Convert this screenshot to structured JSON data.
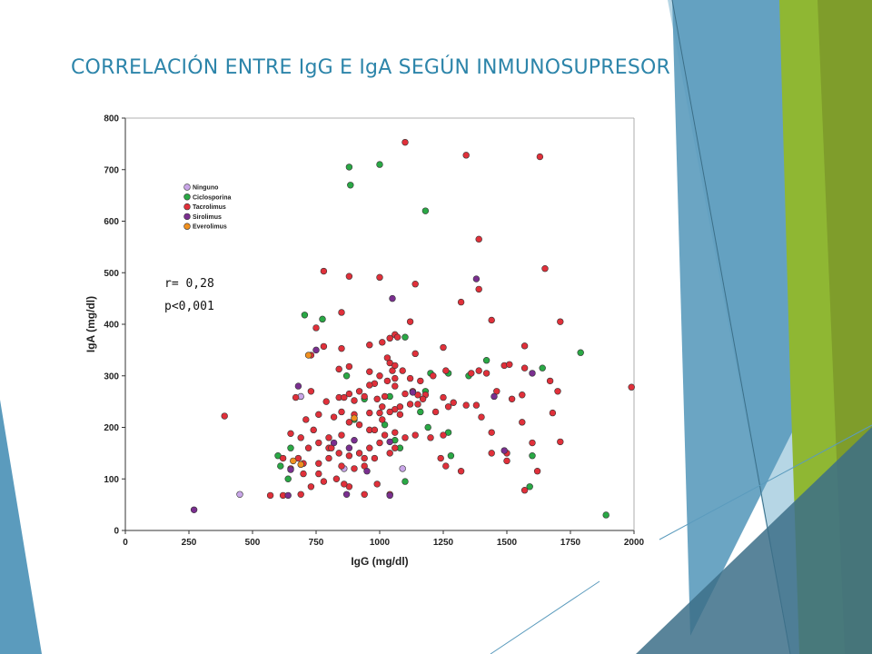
{
  "slide": {
    "title": "CORRELACIÓN ENTRE IgG E IgA SEGÚN INMUNOSUPRESOR"
  },
  "annotations": {
    "r": "r= 0,28",
    "p": "p<0,001"
  },
  "theme": {
    "title_color": "#2d85aa",
    "deco_blue": "#5b9bbd",
    "deco_light": "#a9cfe0",
    "deco_green": "#8fb733",
    "deco_olive": "#7d9a2a",
    "deco_dark": "#3c6f88"
  },
  "chart_data": {
    "type": "scatter",
    "xlabel": "IgG (mg/dl)",
    "ylabel": "IgA (mg/dl)",
    "xlim": [
      0,
      2000
    ],
    "ylim": [
      0,
      800
    ],
    "xticks": [
      0,
      250,
      500,
      750,
      1000,
      1250,
      1500,
      1750,
      2000
    ],
    "yticks": [
      0,
      100,
      200,
      300,
      400,
      500,
      600,
      700,
      800
    ],
    "grid": false,
    "legend_position": "top-left",
    "series": [
      {
        "name": "Ninguno",
        "color": "#c9a6e8",
        "points": [
          [
            450,
            70
          ],
          [
            690,
            260
          ],
          [
            860,
            120
          ],
          [
            1090,
            120
          ]
        ]
      },
      {
        "name": "Ciclosporina",
        "color": "#2aa845",
        "points": [
          [
            880,
            705
          ],
          [
            1000,
            710
          ],
          [
            885,
            670
          ],
          [
            1180,
            620
          ],
          [
            705,
            418
          ],
          [
            775,
            410
          ],
          [
            1100,
            375
          ],
          [
            1790,
            345
          ],
          [
            1420,
            330
          ],
          [
            1640,
            315
          ],
          [
            1200,
            305
          ],
          [
            1270,
            305
          ],
          [
            1350,
            300
          ],
          [
            1180,
            270
          ],
          [
            1160,
            230
          ],
          [
            1040,
            260
          ],
          [
            940,
            255
          ],
          [
            870,
            300
          ],
          [
            1020,
            205
          ],
          [
            1190,
            200
          ],
          [
            1270,
            190
          ],
          [
            1080,
            160
          ],
          [
            1280,
            145
          ],
          [
            1600,
            145
          ],
          [
            1100,
            95
          ],
          [
            650,
            160
          ],
          [
            600,
            145
          ],
          [
            610,
            125
          ],
          [
            640,
            100
          ],
          [
            1590,
            85
          ],
          [
            1890,
            30
          ],
          [
            900,
            215
          ],
          [
            1060,
            175
          ]
        ]
      },
      {
        "name": "Tacrolimus",
        "color": "#e0303a",
        "points": [
          [
            1100,
            753
          ],
          [
            1340,
            728
          ],
          [
            1630,
            725
          ],
          [
            1390,
            565
          ],
          [
            1650,
            508
          ],
          [
            780,
            503
          ],
          [
            880,
            493
          ],
          [
            1000,
            491
          ],
          [
            1140,
            478
          ],
          [
            1390,
            468
          ],
          [
            1320,
            443
          ],
          [
            1440,
            408
          ],
          [
            1710,
            405
          ],
          [
            1120,
            405
          ],
          [
            850,
            423
          ],
          [
            750,
            393
          ],
          [
            1060,
            380
          ],
          [
            1070,
            375
          ],
          [
            1040,
            373
          ],
          [
            1010,
            365
          ],
          [
            960,
            360
          ],
          [
            850,
            353
          ],
          [
            780,
            357
          ],
          [
            1570,
            358
          ],
          [
            1250,
            355
          ],
          [
            1140,
            343
          ],
          [
            730,
            340
          ],
          [
            1030,
            335
          ],
          [
            1040,
            325
          ],
          [
            1050,
            310
          ],
          [
            1060,
            320
          ],
          [
            840,
            313
          ],
          [
            880,
            318
          ],
          [
            960,
            308
          ],
          [
            1000,
            300
          ],
          [
            1030,
            290
          ],
          [
            1120,
            295
          ],
          [
            1160,
            290
          ],
          [
            1210,
            300
          ],
          [
            1260,
            310
          ],
          [
            1360,
            305
          ],
          [
            1390,
            310
          ],
          [
            1490,
            320
          ],
          [
            1510,
            322
          ],
          [
            1570,
            315
          ],
          [
            1670,
            290
          ],
          [
            1990,
            278
          ],
          [
            1420,
            305
          ],
          [
            980,
            285
          ],
          [
            1060,
            280
          ],
          [
            1100,
            265
          ],
          [
            1130,
            270
          ],
          [
            1150,
            263
          ],
          [
            1180,
            263
          ],
          [
            1250,
            258
          ],
          [
            1020,
            260
          ],
          [
            990,
            255
          ],
          [
            940,
            260
          ],
          [
            900,
            252
          ],
          [
            840,
            258
          ],
          [
            790,
            250
          ],
          [
            730,
            270
          ],
          [
            670,
            258
          ],
          [
            1010,
            240
          ],
          [
            1060,
            235
          ],
          [
            1080,
            240
          ],
          [
            1150,
            245
          ],
          [
            1270,
            240
          ],
          [
            1290,
            248
          ],
          [
            1340,
            243
          ],
          [
            1380,
            243
          ],
          [
            1460,
            270
          ],
          [
            1520,
            255
          ],
          [
            1560,
            263
          ],
          [
            1700,
            270
          ],
          [
            1680,
            228
          ],
          [
            1000,
            228
          ],
          [
            960,
            228
          ],
          [
            900,
            225
          ],
          [
            850,
            230
          ],
          [
            820,
            220
          ],
          [
            760,
            225
          ],
          [
            710,
            215
          ],
          [
            650,
            188
          ],
          [
            690,
            180
          ],
          [
            740,
            195
          ],
          [
            800,
            180
          ],
          [
            850,
            185
          ],
          [
            880,
            210
          ],
          [
            920,
            205
          ],
          [
            960,
            195
          ],
          [
            1020,
            185
          ],
          [
            1060,
            190
          ],
          [
            1100,
            180
          ],
          [
            1140,
            185
          ],
          [
            1200,
            180
          ],
          [
            1250,
            185
          ],
          [
            1440,
            190
          ],
          [
            1600,
            170
          ],
          [
            1710,
            172
          ],
          [
            390,
            222
          ],
          [
            860,
            258
          ],
          [
            1560,
            210
          ],
          [
            1400,
            220
          ],
          [
            1000,
            170
          ],
          [
            960,
            160
          ],
          [
            920,
            150
          ],
          [
            880,
            145
          ],
          [
            840,
            150
          ],
          [
            800,
            160
          ],
          [
            760,
            170
          ],
          [
            720,
            160
          ],
          [
            680,
            140
          ],
          [
            650,
            120
          ],
          [
            700,
            110
          ],
          [
            760,
            130
          ],
          [
            800,
            140
          ],
          [
            850,
            125
          ],
          [
            900,
            120
          ],
          [
            940,
            125
          ],
          [
            980,
            140
          ],
          [
            1040,
            150
          ],
          [
            1060,
            160
          ],
          [
            1260,
            125
          ],
          [
            1240,
            140
          ],
          [
            1320,
            115
          ],
          [
            1440,
            150
          ],
          [
            1500,
            150
          ],
          [
            1620,
            115
          ],
          [
            730,
            85
          ],
          [
            780,
            95
          ],
          [
            830,
            100
          ],
          [
            880,
            85
          ],
          [
            940,
            70
          ],
          [
            990,
            90
          ],
          [
            1040,
            70
          ],
          [
            620,
            68
          ],
          [
            570,
            68
          ],
          [
            690,
            70
          ],
          [
            1570,
            78
          ],
          [
            1500,
            135
          ],
          [
            860,
            90
          ],
          [
            940,
            140
          ],
          [
            980,
            195
          ],
          [
            1010,
            215
          ],
          [
            1040,
            230
          ],
          [
            1080,
            225
          ],
          [
            1120,
            245
          ],
          [
            1170,
            255
          ],
          [
            1220,
            230
          ],
          [
            960,
            282
          ],
          [
            920,
            270
          ],
          [
            880,
            265
          ],
          [
            1060,
            295
          ],
          [
            1090,
            310
          ],
          [
            620,
            140
          ],
          [
            700,
            130
          ],
          [
            760,
            110
          ],
          [
            810,
            160
          ]
        ]
      },
      {
        "name": "Sirolimus",
        "color": "#7a2f8f",
        "points": [
          [
            270,
            40
          ],
          [
            1380,
            488
          ],
          [
            1050,
            450
          ],
          [
            1600,
            305
          ],
          [
            1450,
            260
          ],
          [
            1130,
            268
          ],
          [
            680,
            280
          ],
          [
            750,
            350
          ],
          [
            880,
            160
          ],
          [
            900,
            175
          ],
          [
            1040,
            172
          ],
          [
            1490,
            155
          ],
          [
            950,
            115
          ],
          [
            870,
            70
          ],
          [
            1040,
            68
          ],
          [
            640,
            68
          ],
          [
            650,
            118
          ],
          [
            820,
            170
          ]
        ]
      },
      {
        "name": "Everolimus",
        "color": "#f0901f",
        "points": [
          [
            720,
            340
          ],
          [
            900,
            218
          ],
          [
            660,
            135
          ],
          [
            690,
            128
          ]
        ]
      }
    ]
  }
}
